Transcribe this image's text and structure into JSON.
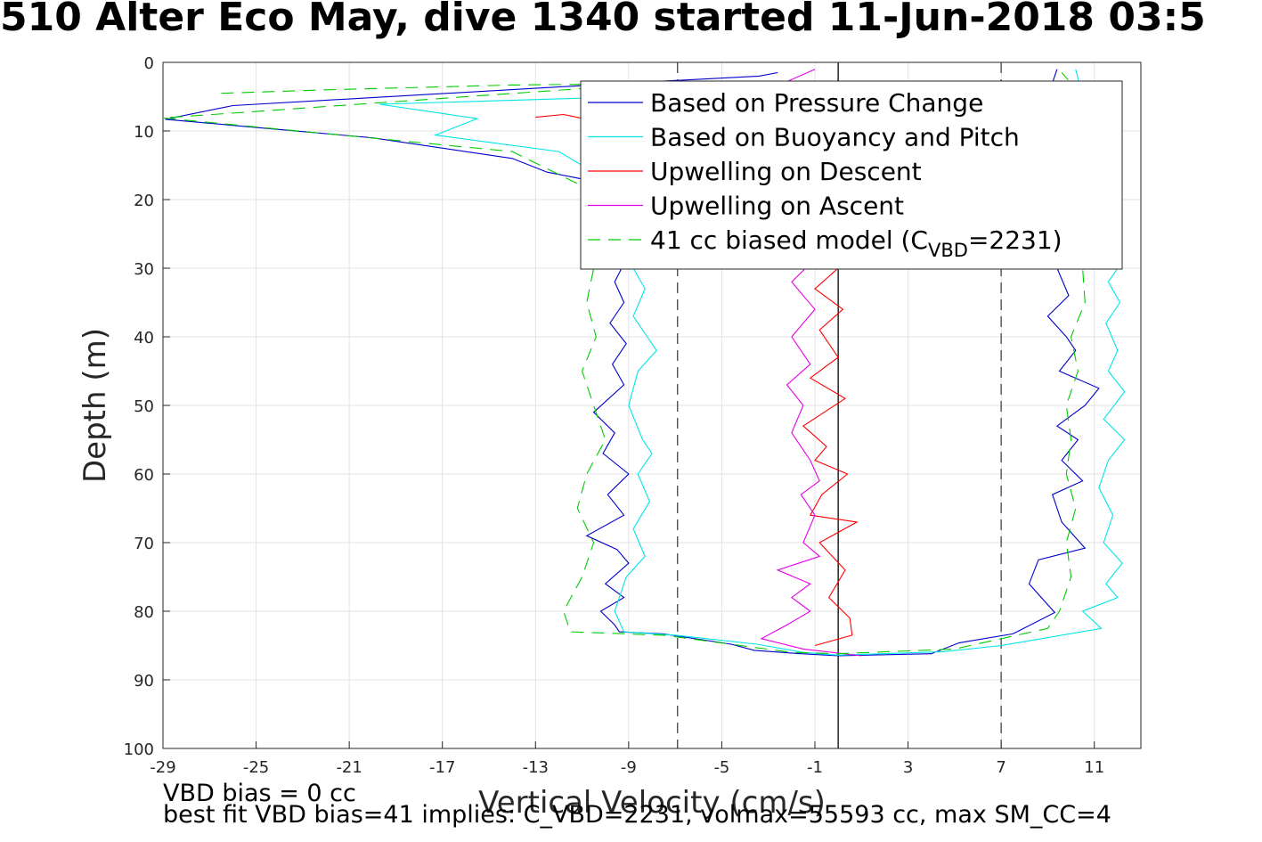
{
  "title": "510 Alter Eco May, dive 1340 started 11-Jun-2018 03:5",
  "footer": {
    "line1": "VBD bias = 0 cc",
    "line2": "best fit VBD bias=41 implies: C_VBD=2231, volmax=55593 cc, max SM_CC=4"
  },
  "chart_data": {
    "type": "line",
    "title": "510 Alter Eco May, dive 1340 started 11-Jun-2018 03:5",
    "xlabel": "Vertical Velocity (cm/s)",
    "ylabel": "Depth (m)",
    "xlim": [
      -29,
      13
    ],
    "ylim": [
      0,
      100
    ],
    "y_reversed": true,
    "grid": true,
    "xticks": [
      -29,
      -25,
      -21,
      -17,
      -13,
      -9,
      -5,
      -1,
      3,
      7,
      11
    ],
    "yticks": [
      0,
      10,
      20,
      30,
      40,
      50,
      60,
      70,
      80,
      90,
      100
    ],
    "legend_position": "top-right",
    "reference_lines": [
      {
        "x": -6.9,
        "style": "dashed",
        "color": "#444444"
      },
      {
        "x": 0.0,
        "style": "solid",
        "color": "#000000"
      },
      {
        "x": 7.0,
        "style": "dashed",
        "color": "#444444"
      }
    ],
    "series": [
      {
        "name": "Based on Pressure Change",
        "color": "#0000cc",
        "style": "solid",
        "points": [
          [
            -2.6,
            1.5
          ],
          [
            -3.4,
            2.0
          ],
          [
            -9,
            3.0
          ],
          [
            -26,
            6.3
          ],
          [
            -28.9,
            8.3
          ],
          [
            -20,
            11
          ],
          [
            -14,
            14
          ],
          [
            -12.5,
            16
          ],
          [
            -11,
            17
          ],
          [
            -9.5,
            25
          ],
          [
            -9.3,
            30
          ],
          [
            -9.6,
            32
          ],
          [
            -9.2,
            35
          ],
          [
            -9.8,
            38
          ],
          [
            -9.1,
            41
          ],
          [
            -9.7,
            44
          ],
          [
            -9.2,
            47
          ],
          [
            -10.5,
            51
          ],
          [
            -9.6,
            54
          ],
          [
            -10.1,
            57
          ],
          [
            -9.0,
            60
          ],
          [
            -9.9,
            63
          ],
          [
            -9.2,
            66
          ],
          [
            -10.8,
            69
          ],
          [
            -9.5,
            71
          ],
          [
            -9.0,
            73
          ],
          [
            -10.0,
            76
          ],
          [
            -9.2,
            78
          ],
          [
            -10.2,
            80
          ],
          [
            -9.6,
            82
          ],
          [
            -9.4,
            83
          ],
          [
            -7.5,
            83.3
          ],
          [
            -4.6,
            84.8
          ],
          [
            -3.6,
            85.7
          ],
          [
            -1.6,
            86.2
          ],
          [
            0,
            86.5
          ],
          [
            4.0,
            86.2
          ],
          [
            5.2,
            84.6
          ],
          [
            7.5,
            83.3
          ],
          [
            9.3,
            80.2
          ],
          [
            8.2,
            76
          ],
          [
            8.6,
            72.5
          ],
          [
            10.6,
            70.8
          ],
          [
            9.6,
            67
          ],
          [
            9.2,
            63
          ],
          [
            10.5,
            61
          ],
          [
            9.6,
            58
          ],
          [
            10.3,
            55
          ],
          [
            9.4,
            53
          ],
          [
            10.6,
            50
          ],
          [
            11.2,
            47.5
          ],
          [
            9.5,
            45
          ],
          [
            10.2,
            42
          ],
          [
            9.8,
            40
          ],
          [
            9.0,
            37
          ],
          [
            9.9,
            34
          ],
          [
            9.4,
            30
          ],
          [
            9.5,
            20
          ],
          [
            9.0,
            5
          ],
          [
            9.4,
            1
          ]
        ]
      },
      {
        "name": "Based on Buoyancy and Pitch",
        "color": "#00e5e5",
        "style": "solid",
        "points": [
          [
            -8.9,
            5
          ],
          [
            -19.7,
            6.1
          ],
          [
            -15.5,
            8.2
          ],
          [
            -17.3,
            10.6
          ],
          [
            -12,
            13
          ],
          [
            -8.5,
            20
          ],
          [
            -8.8,
            30
          ],
          [
            -8.3,
            33
          ],
          [
            -8.8,
            37
          ],
          [
            -8.2,
            40
          ],
          [
            -7.8,
            42
          ],
          [
            -8.6,
            45
          ],
          [
            -9.0,
            50
          ],
          [
            -8.4,
            55
          ],
          [
            -8.0,
            57
          ],
          [
            -8.6,
            60
          ],
          [
            -8.1,
            64
          ],
          [
            -8.8,
            68
          ],
          [
            -8.3,
            72
          ],
          [
            -9.1,
            75
          ],
          [
            -9.6,
            80
          ],
          [
            -9.2,
            83
          ],
          [
            -7.0,
            83.5
          ],
          [
            -3.5,
            84.8
          ],
          [
            -1.5,
            86.0
          ],
          [
            0,
            86.4
          ],
          [
            4.5,
            85.9
          ],
          [
            7,
            85
          ],
          [
            11.3,
            82.5
          ],
          [
            10.5,
            80
          ],
          [
            12.0,
            78
          ],
          [
            11.5,
            76
          ],
          [
            12.2,
            73
          ],
          [
            11.4,
            70
          ],
          [
            11.8,
            66
          ],
          [
            11.2,
            62
          ],
          [
            11.6,
            58
          ],
          [
            12.3,
            55
          ],
          [
            11.4,
            52
          ],
          [
            12.3,
            48
          ],
          [
            11.6,
            45
          ],
          [
            12.0,
            42
          ],
          [
            11.5,
            38
          ],
          [
            12.1,
            35
          ],
          [
            11.6,
            32
          ],
          [
            12.0,
            30
          ],
          [
            11.0,
            20
          ],
          [
            10.5,
            5
          ],
          [
            10.2,
            1
          ]
        ]
      },
      {
        "name": "Upwelling on Descent",
        "color": "#ff0000",
        "style": "solid",
        "points": [
          [
            -13,
            8
          ],
          [
            -11.8,
            7.6
          ],
          [
            -10.8,
            8.3
          ],
          [
            -9.5,
            8
          ],
          [
            0,
            30
          ],
          [
            -1,
            33
          ],
          [
            0.2,
            36
          ],
          [
            -0.8,
            39
          ],
          [
            0.0,
            43
          ],
          [
            -1.2,
            46
          ],
          [
            0.3,
            49
          ],
          [
            -1.5,
            53
          ],
          [
            -0.5,
            56
          ],
          [
            -1.0,
            58
          ],
          [
            0.4,
            60
          ],
          [
            -0.7,
            63
          ],
          [
            -1.2,
            66
          ],
          [
            0.8,
            67
          ],
          [
            -0.8,
            70
          ],
          [
            0.3,
            74
          ],
          [
            -0.4,
            78
          ],
          [
            0.5,
            81
          ],
          [
            0.6,
            83.5
          ],
          [
            -1.0,
            85
          ]
        ]
      },
      {
        "name": "Upwelling on Ascent",
        "color": "#e600e6",
        "style": "solid",
        "points": [
          [
            -1.0,
            1
          ],
          [
            -3.0,
            4
          ],
          [
            -0.8,
            28
          ],
          [
            -2.0,
            32
          ],
          [
            -1.0,
            36
          ],
          [
            -2.0,
            40
          ],
          [
            -1.2,
            44
          ],
          [
            -2.2,
            47
          ],
          [
            -1.5,
            50
          ],
          [
            -2.0,
            54
          ],
          [
            -1.2,
            58
          ],
          [
            -0.8,
            61
          ],
          [
            -1.6,
            63
          ],
          [
            -1.0,
            66
          ],
          [
            -1.5,
            70
          ],
          [
            -0.8,
            72
          ],
          [
            -2.6,
            74
          ],
          [
            -1.2,
            76
          ],
          [
            -2.0,
            78
          ],
          [
            -1.2,
            80
          ],
          [
            -2.2,
            82
          ],
          [
            -3.3,
            84
          ],
          [
            -1.5,
            85.5
          ],
          [
            1.0,
            86.5
          ]
        ]
      },
      {
        "name": "41 cc biased model (CVBD=2231)",
        "color": "#00cc00",
        "style": "dashed",
        "points": [
          [
            -26.5,
            4.5
          ],
          [
            -22,
            4
          ],
          [
            -14,
            3.3
          ],
          [
            -8,
            3.1
          ],
          [
            -29,
            8.1
          ],
          [
            -14,
            13
          ],
          [
            -11,
            18
          ],
          [
            -10.5,
            30
          ],
          [
            -10.8,
            35
          ],
          [
            -10.4,
            40
          ],
          [
            -11.0,
            45
          ],
          [
            -10.5,
            50
          ],
          [
            -10.0,
            55
          ],
          [
            -10.8,
            60
          ],
          [
            -11.2,
            65
          ],
          [
            -10.5,
            70
          ],
          [
            -11.0,
            75
          ],
          [
            -11.8,
            80
          ],
          [
            -11.5,
            83
          ],
          [
            -7.5,
            83.5
          ],
          [
            -2,
            86
          ],
          [
            0,
            86.2
          ],
          [
            5,
            85.5
          ],
          [
            9,
            82.5
          ],
          [
            9.5,
            80
          ],
          [
            10.0,
            75
          ],
          [
            9.8,
            70
          ],
          [
            10.2,
            65
          ],
          [
            9.8,
            60
          ],
          [
            10.0,
            55
          ],
          [
            9.8,
            50
          ],
          [
            10.3,
            45
          ],
          [
            10.0,
            40
          ],
          [
            10.6,
            35
          ],
          [
            10.5,
            30
          ],
          [
            10.0,
            20
          ],
          [
            10.0,
            3
          ],
          [
            9.6,
            1.5
          ]
        ]
      }
    ]
  }
}
